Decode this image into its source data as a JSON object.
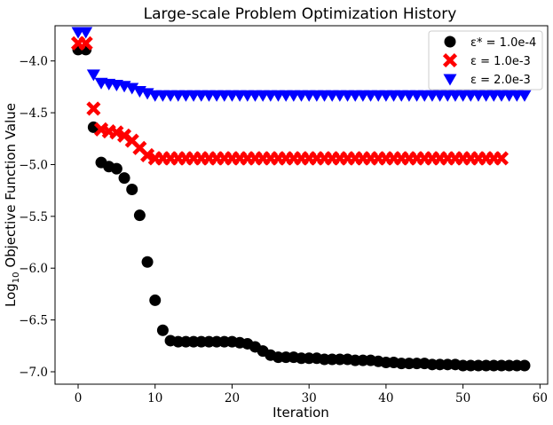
{
  "chart_data": {
    "type": "scatter",
    "title": "Large-scale Problem Optimization History",
    "xlabel": "Iteration",
    "ylabel_prefix": "Log",
    "ylabel_sub": "10",
    "ylabel_suffix": " Objective Function Value",
    "xlim": [
      -3,
      61
    ],
    "ylim": [
      -7.12,
      -3.66
    ],
    "xticks": [
      0,
      10,
      20,
      30,
      40,
      50,
      60
    ],
    "xtick_labels": [
      "0",
      "10",
      "20",
      "30",
      "40",
      "50",
      "60"
    ],
    "yticks": [
      -4.0,
      -4.5,
      -5.0,
      -5.5,
      -6.0,
      -6.5,
      -7.0
    ],
    "ytick_labels": [
      "−4.0",
      "−4.5",
      "−5.0",
      "−5.5",
      "−6.0",
      "−6.5",
      "−7.0"
    ],
    "legend_position": "top-right",
    "series": [
      {
        "name": "ε* = 1.0e-4",
        "color": "#000000",
        "marker": "circle",
        "x": [
          0,
          1,
          2,
          3,
          4,
          5,
          6,
          7,
          8,
          9,
          10,
          11,
          12,
          13,
          14,
          15,
          16,
          17,
          18,
          19,
          20,
          21,
          22,
          23,
          24,
          25,
          26,
          27,
          28,
          29,
          30,
          31,
          32,
          33,
          34,
          35,
          36,
          37,
          38,
          39,
          40,
          41,
          42,
          43,
          44,
          45,
          46,
          47,
          48,
          49,
          50,
          51,
          52,
          53,
          54,
          55,
          56,
          57,
          58
        ],
        "values": [
          -3.89,
          -3.89,
          -4.64,
          -4.98,
          -5.02,
          -5.04,
          -5.13,
          -5.24,
          -5.49,
          -5.94,
          -6.31,
          -6.6,
          -6.7,
          -6.71,
          -6.71,
          -6.71,
          -6.71,
          -6.71,
          -6.71,
          -6.71,
          -6.71,
          -6.72,
          -6.73,
          -6.76,
          -6.8,
          -6.84,
          -6.86,
          -6.86,
          -6.86,
          -6.87,
          -6.87,
          -6.87,
          -6.88,
          -6.88,
          -6.88,
          -6.88,
          -6.89,
          -6.89,
          -6.89,
          -6.9,
          -6.91,
          -6.91,
          -6.92,
          -6.92,
          -6.92,
          -6.92,
          -6.93,
          -6.93,
          -6.93,
          -6.93,
          -6.94,
          -6.94,
          -6.94,
          -6.94,
          -6.94,
          -6.94,
          -6.94,
          -6.94,
          -6.94
        ]
      },
      {
        "name": "ε = 1.0e-3",
        "color": "#ff0000",
        "marker": "x",
        "x": [
          0,
          1,
          2,
          3,
          4,
          5,
          6,
          7,
          8,
          9,
          10,
          11,
          12,
          13,
          14,
          15,
          16,
          17,
          18,
          19,
          20,
          21,
          22,
          23,
          24,
          25,
          26,
          27,
          28,
          29,
          30,
          31,
          32,
          33,
          34,
          35,
          36,
          37,
          38,
          39,
          40,
          41,
          42,
          43,
          44,
          45,
          46,
          47,
          48,
          49,
          50,
          51,
          52,
          53,
          54,
          55
        ],
        "values": [
          -3.83,
          -3.83,
          -4.46,
          -4.66,
          -4.68,
          -4.69,
          -4.72,
          -4.77,
          -4.84,
          -4.91,
          -4.94,
          -4.94,
          -4.94,
          -4.94,
          -4.94,
          -4.94,
          -4.94,
          -4.94,
          -4.94,
          -4.94,
          -4.94,
          -4.94,
          -4.94,
          -4.94,
          -4.94,
          -4.94,
          -4.94,
          -4.94,
          -4.94,
          -4.94,
          -4.94,
          -4.94,
          -4.94,
          -4.94,
          -4.94,
          -4.94,
          -4.94,
          -4.94,
          -4.94,
          -4.94,
          -4.94,
          -4.94,
          -4.94,
          -4.94,
          -4.94,
          -4.94,
          -4.94,
          -4.94,
          -4.94,
          -4.94,
          -4.94,
          -4.94,
          -4.94,
          -4.94,
          -4.94,
          -4.94
        ]
      },
      {
        "name": "ε = 2.0e-3",
        "color": "#0000ff",
        "marker": "triangle-down",
        "x": [
          0,
          1,
          2,
          3,
          4,
          5,
          6,
          7,
          8,
          9,
          10,
          11,
          12,
          13,
          14,
          15,
          16,
          17,
          18,
          19,
          20,
          21,
          22,
          23,
          24,
          25,
          26,
          27,
          28,
          29,
          30,
          31,
          32,
          33,
          34,
          35,
          36,
          37,
          38,
          39,
          40,
          41,
          42,
          43,
          44,
          45,
          46,
          47,
          48,
          49,
          50,
          51,
          52,
          53,
          54,
          55,
          56,
          57,
          58
        ],
        "values": [
          -3.72,
          -3.72,
          -4.13,
          -4.21,
          -4.22,
          -4.23,
          -4.24,
          -4.26,
          -4.29,
          -4.31,
          -4.33,
          -4.33,
          -4.33,
          -4.33,
          -4.33,
          -4.33,
          -4.33,
          -4.33,
          -4.33,
          -4.33,
          -4.33,
          -4.33,
          -4.33,
          -4.33,
          -4.33,
          -4.33,
          -4.33,
          -4.33,
          -4.33,
          -4.33,
          -4.33,
          -4.33,
          -4.33,
          -4.33,
          -4.33,
          -4.33,
          -4.33,
          -4.33,
          -4.33,
          -4.33,
          -4.33,
          -4.33,
          -4.33,
          -4.33,
          -4.33,
          -4.33,
          -4.33,
          -4.33,
          -4.33,
          -4.33,
          -4.33,
          -4.33,
          -4.33,
          -4.33,
          -4.33,
          -4.33,
          -4.33,
          -4.33,
          -4.33
        ]
      }
    ]
  }
}
